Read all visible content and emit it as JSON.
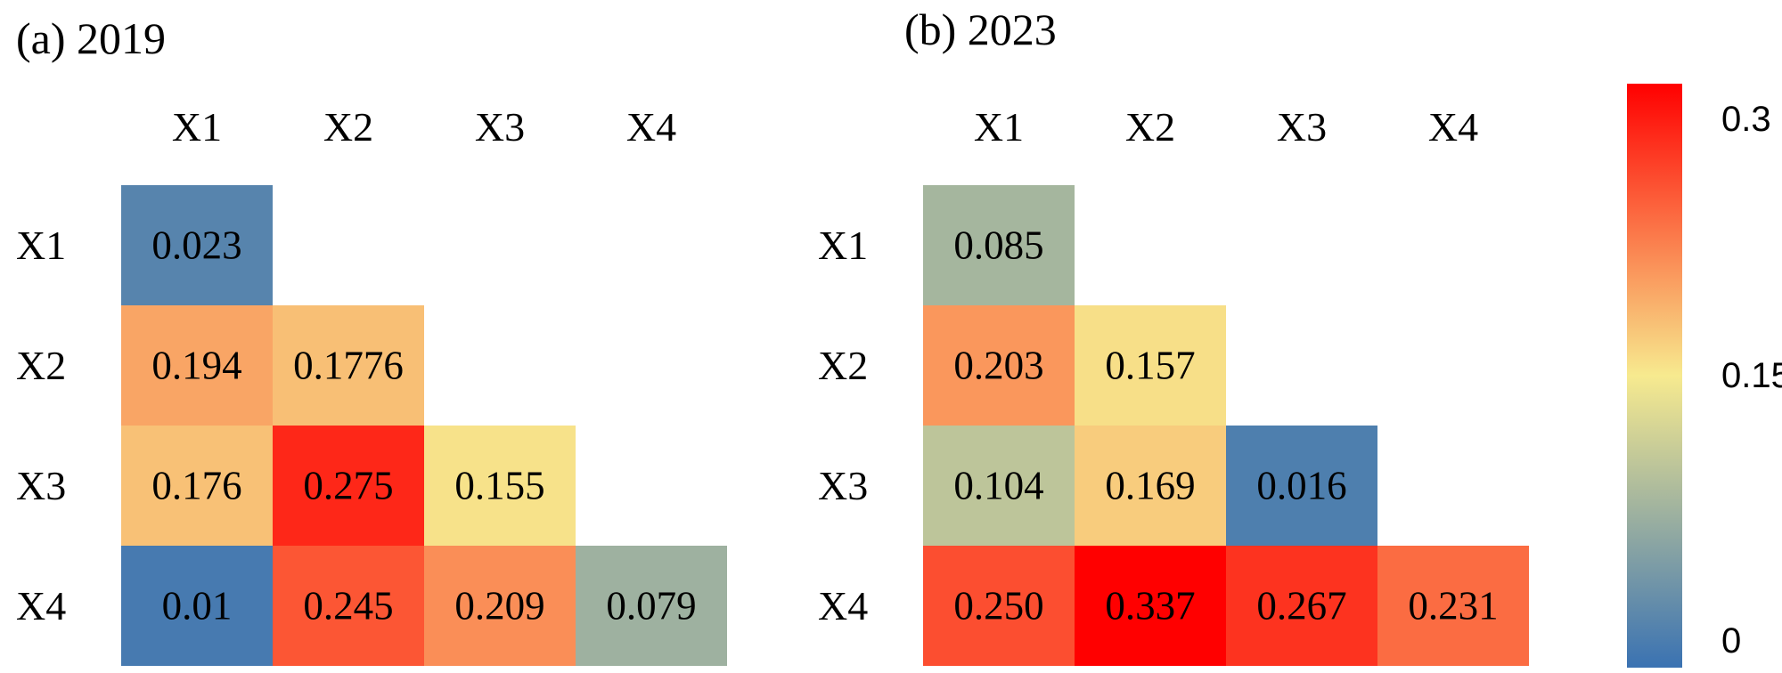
{
  "chart_data": [
    {
      "type": "heatmap",
      "title": "(a) 2019",
      "x_labels": [
        "X1",
        "X2",
        "X3",
        "X4"
      ],
      "y_labels": [
        "X1",
        "X2",
        "X3",
        "X4"
      ],
      "matrix": [
        [
          "0.023"
        ],
        [
          "0.194",
          "0.1776"
        ],
        [
          "0.176",
          "0.275",
          "0.155"
        ],
        [
          "0.01",
          "0.245",
          "0.209",
          "0.079"
        ]
      ]
    },
    {
      "type": "heatmap",
      "title": "(b) 2023",
      "x_labels": [
        "X1",
        "X2",
        "X3",
        "X4"
      ],
      "y_labels": [
        "X1",
        "X2",
        "X3",
        "X4"
      ],
      "matrix": [
        [
          "0.085"
        ],
        [
          "0.203",
          "0.157"
        ],
        [
          "0.104",
          "0.169",
          "0.016"
        ],
        [
          "0.250",
          "0.337",
          "0.267",
          "0.231"
        ]
      ]
    }
  ],
  "colorbar": {
    "min": 0,
    "max": 0.3,
    "tick_values": [
      0.3,
      0.15,
      0
    ],
    "tick_labels": [
      "0.3",
      "0.15",
      "0"
    ],
    "colors": [
      "#3a72b2",
      "#f7ea8f",
      "#ff0000"
    ]
  }
}
